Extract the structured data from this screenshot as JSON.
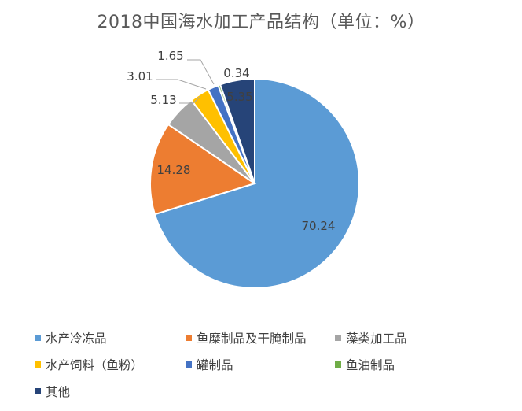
{
  "chart_data": {
    "type": "pie",
    "title": "2018中国海水加工产品结构（单位：%）",
    "categories": [
      "水产冷冻品",
      "鱼糜制品及干腌制品",
      "藻类加工品",
      "水产饲料（鱼粉）",
      "罐制品",
      "鱼油制品",
      "其他"
    ],
    "values": [
      70.24,
      14.28,
      5.13,
      3.01,
      1.65,
      0.34,
      5.35
    ],
    "value_labels": [
      "70.24",
      "14.28",
      "5.13",
      "3.01",
      "1.65",
      "0.34",
      "5.35"
    ],
    "colors": [
      "#5B9BD5",
      "#ED7D31",
      "#A5A5A5",
      "#FFC000",
      "#4472C4",
      "#70AD47",
      "#264478"
    ],
    "legend_position": "bottom"
  }
}
